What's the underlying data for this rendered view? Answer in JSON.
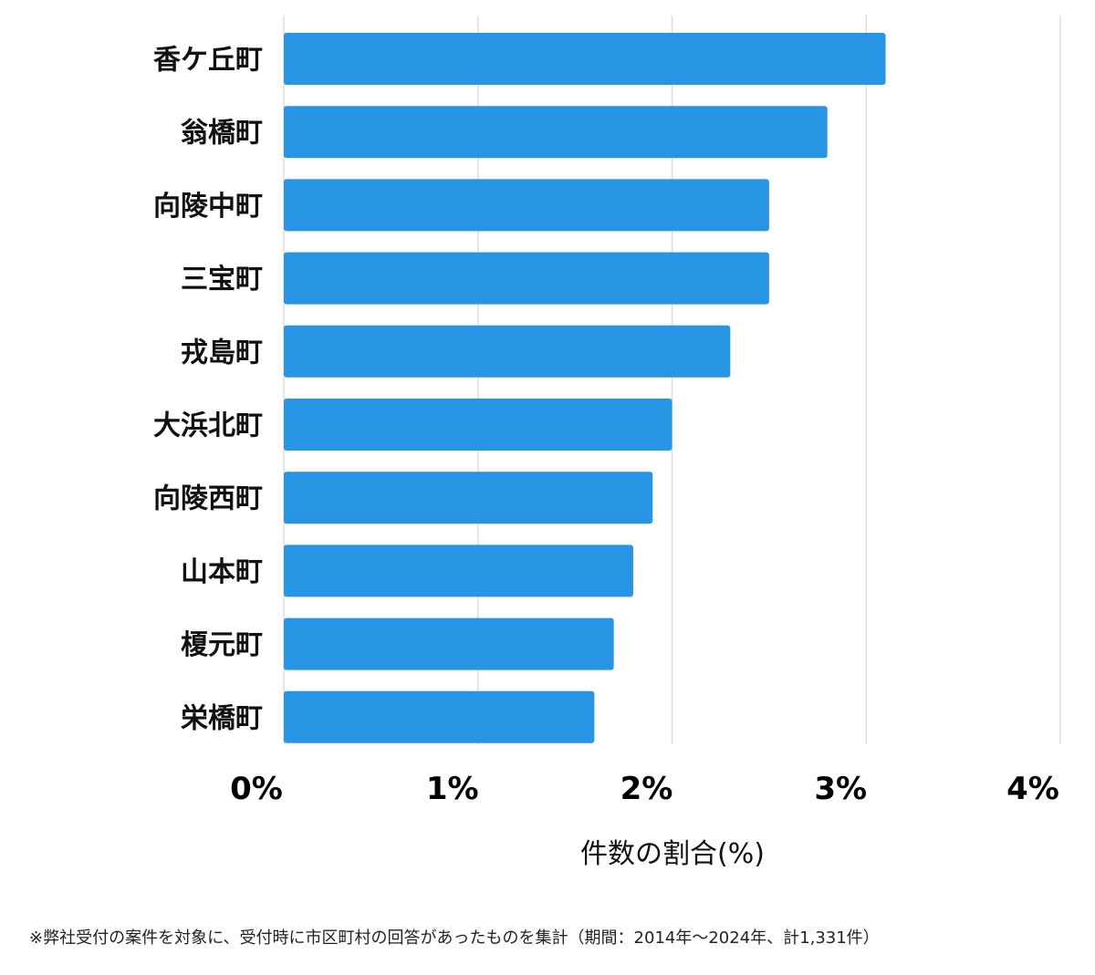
{
  "chart_data": {
    "type": "bar",
    "orientation": "horizontal",
    "categories": [
      "香ケ丘町",
      "翁橋町",
      "向陵中町",
      "三宝町",
      "戎島町",
      "大浜北町",
      "向陵西町",
      "山本町",
      "榎元町",
      "栄橋町"
    ],
    "values": [
      3.1,
      2.8,
      2.5,
      2.5,
      2.3,
      2.0,
      1.9,
      1.8,
      1.7,
      1.6
    ],
    "x_ticks": [
      "0%",
      "1%",
      "2%",
      "3%",
      "4%"
    ],
    "xlim": [
      0,
      4
    ],
    "xlabel": "件数の割合(%)",
    "grid": true,
    "bar_color": "#2795e4",
    "grid_color": "#dddddd"
  },
  "footnote": "※弊社受付の案件を対象に、受付時に市区町村の回答があったものを集計（期間：2014年～2024年、計1,331件）"
}
